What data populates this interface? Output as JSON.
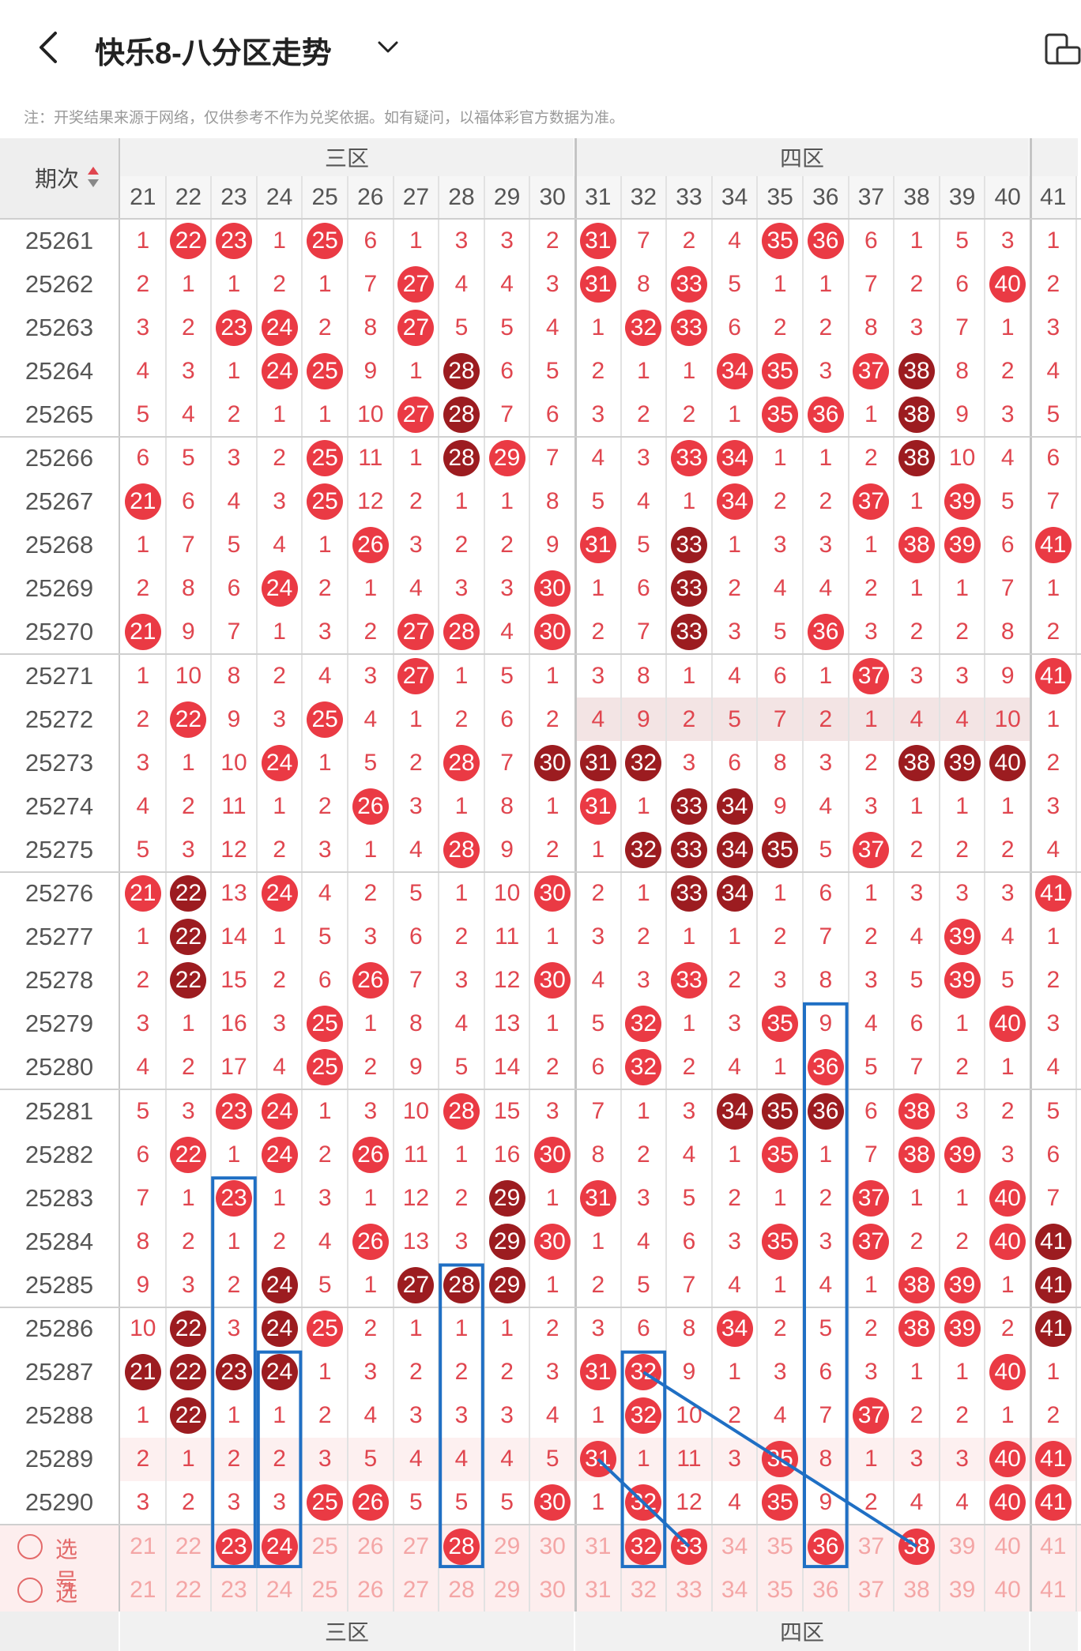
{
  "header": {
    "title": "快乐8-八分区走势",
    "back_icon": "chevron-left-icon",
    "dropdown_icon": "chevron-down-icon",
    "action_icon": "phone-tablet-icon"
  },
  "notice": "注：开奖结果来源于网络，仅供参考不作为兑奖依据。如有疑问，以福体彩官方数据为准。",
  "table": {
    "period_header": "期次",
    "sort_icon": "sort-arrows-icon",
    "zones": [
      {
        "label": "三区",
        "from": 21,
        "to": 30
      },
      {
        "label": "四区",
        "from": 31,
        "to": 40
      }
    ],
    "columns": [
      21,
      22,
      23,
      24,
      25,
      26,
      27,
      28,
      29,
      30,
      31,
      32,
      33,
      34,
      35,
      36,
      37,
      38,
      39,
      40,
      41
    ],
    "rows": [
      {
        "period": "25261",
        "v": [
          1,
          22,
          23,
          1,
          25,
          6,
          1,
          3,
          3,
          2,
          31,
          7,
          2,
          4,
          35,
          36,
          6,
          1,
          5,
          3,
          1
        ],
        "h": [
          22,
          23,
          25,
          31,
          35,
          36
        ]
      },
      {
        "period": "25262",
        "v": [
          2,
          1,
          1,
          2,
          1,
          7,
          27,
          4,
          4,
          3,
          31,
          8,
          33,
          5,
          1,
          1,
          7,
          2,
          6,
          40,
          2
        ],
        "h": [
          27,
          31,
          33,
          40
        ]
      },
      {
        "period": "25263",
        "v": [
          3,
          2,
          23,
          24,
          2,
          8,
          27,
          5,
          5,
          4,
          1,
          32,
          33,
          6,
          2,
          2,
          8,
          3,
          7,
          1,
          3
        ],
        "h": [
          23,
          24,
          27,
          32,
          33
        ]
      },
      {
        "period": "25264",
        "v": [
          4,
          3,
          1,
          24,
          25,
          9,
          1,
          28,
          6,
          5,
          2,
          1,
          1,
          34,
          35,
          3,
          37,
          38,
          8,
          2,
          4
        ],
        "h": [
          24,
          25,
          28,
          34,
          35,
          37,
          38
        ],
        "d": [
          28,
          38
        ]
      },
      {
        "period": "25265",
        "v": [
          5,
          4,
          2,
          1,
          1,
          10,
          27,
          28,
          7,
          6,
          3,
          2,
          2,
          1,
          35,
          36,
          1,
          38,
          9,
          3,
          5
        ],
        "h": [
          27,
          28,
          35,
          36,
          38
        ],
        "d": [
          28,
          38
        ]
      },
      {
        "period": "25266",
        "v": [
          6,
          5,
          3,
          2,
          25,
          11,
          1,
          28,
          29,
          7,
          4,
          3,
          33,
          34,
          1,
          1,
          2,
          38,
          10,
          4,
          6
        ],
        "h": [
          25,
          28,
          29,
          33,
          34,
          38
        ],
        "d": [
          28,
          38
        ]
      },
      {
        "period": "25267",
        "v": [
          21,
          6,
          4,
          3,
          25,
          12,
          2,
          1,
          1,
          8,
          5,
          4,
          1,
          34,
          2,
          2,
          37,
          1,
          39,
          5,
          7
        ],
        "h": [
          21,
          25,
          34,
          37,
          39
        ]
      },
      {
        "period": "25268",
        "v": [
          1,
          7,
          5,
          4,
          1,
          26,
          3,
          2,
          2,
          9,
          31,
          5,
          33,
          1,
          3,
          3,
          1,
          38,
          39,
          6,
          41
        ],
        "h": [
          26,
          31,
          33,
          38,
          39,
          41
        ],
        "d": [
          33
        ]
      },
      {
        "period": "25269",
        "v": [
          2,
          8,
          6,
          24,
          2,
          1,
          4,
          3,
          3,
          30,
          1,
          6,
          33,
          2,
          4,
          4,
          2,
          1,
          1,
          7,
          1
        ],
        "h": [
          24,
          30,
          33
        ],
        "d": [
          33
        ]
      },
      {
        "period": "25270",
        "v": [
          21,
          9,
          7,
          1,
          3,
          2,
          27,
          28,
          4,
          30,
          2,
          7,
          33,
          3,
          5,
          36,
          3,
          2,
          2,
          8,
          2
        ],
        "h": [
          21,
          27,
          28,
          30,
          33,
          36
        ],
        "d": [
          33
        ]
      },
      {
        "period": "25271",
        "v": [
          1,
          10,
          8,
          2,
          4,
          3,
          27,
          1,
          5,
          1,
          3,
          8,
          1,
          4,
          6,
          1,
          37,
          3,
          3,
          9,
          41
        ],
        "h": [
          27,
          37,
          41
        ]
      },
      {
        "period": "25272",
        "v": [
          2,
          22,
          9,
          3,
          25,
          4,
          1,
          2,
          6,
          2,
          4,
          9,
          2,
          5,
          7,
          2,
          1,
          4,
          4,
          10,
          1
        ],
        "h": [
          22,
          25
        ],
        "shade": true
      },
      {
        "period": "25273",
        "v": [
          3,
          1,
          10,
          24,
          1,
          5,
          2,
          28,
          7,
          30,
          31,
          32,
          3,
          6,
          8,
          3,
          2,
          38,
          39,
          40,
          2
        ],
        "h": [
          24,
          28,
          30,
          31,
          32,
          38,
          39,
          40
        ],
        "d": [
          30,
          31,
          32,
          38,
          39,
          40
        ]
      },
      {
        "period": "25274",
        "v": [
          4,
          2,
          11,
          1,
          2,
          26,
          3,
          1,
          8,
          1,
          31,
          1,
          33,
          34,
          9,
          4,
          3,
          1,
          1,
          1,
          3
        ],
        "h": [
          26,
          31,
          33,
          34
        ],
        "d": [
          33,
          34
        ]
      },
      {
        "period": "25275",
        "v": [
          5,
          3,
          12,
          2,
          3,
          1,
          4,
          28,
          9,
          2,
          1,
          32,
          33,
          34,
          35,
          5,
          37,
          2,
          2,
          2,
          4
        ],
        "h": [
          28,
          32,
          33,
          34,
          35,
          37
        ],
        "d": [
          32,
          33,
          34,
          35
        ]
      },
      {
        "period": "25276",
        "v": [
          21,
          22,
          13,
          24,
          4,
          2,
          5,
          1,
          10,
          30,
          2,
          1,
          33,
          34,
          1,
          6,
          1,
          3,
          3,
          3,
          41
        ],
        "h": [
          21,
          22,
          24,
          30,
          33,
          34,
          41
        ],
        "d": [
          22,
          33,
          34
        ]
      },
      {
        "period": "25277",
        "v": [
          1,
          22,
          14,
          1,
          5,
          3,
          6,
          2,
          11,
          1,
          3,
          2,
          1,
          1,
          2,
          7,
          2,
          4,
          39,
          4,
          1
        ],
        "h": [
          22,
          39
        ],
        "d": [
          22
        ]
      },
      {
        "period": "25278",
        "v": [
          2,
          22,
          15,
          2,
          6,
          26,
          7,
          3,
          12,
          30,
          4,
          3,
          33,
          2,
          3,
          8,
          3,
          5,
          39,
          5,
          2
        ],
        "h": [
          22,
          26,
          30,
          33,
          39
        ],
        "d": [
          22
        ]
      },
      {
        "period": "25279",
        "v": [
          3,
          1,
          16,
          3,
          25,
          1,
          8,
          4,
          13,
          1,
          5,
          32,
          1,
          3,
          35,
          9,
          4,
          6,
          1,
          40,
          3
        ],
        "h": [
          25,
          32,
          35,
          40
        ]
      },
      {
        "period": "25280",
        "v": [
          4,
          2,
          17,
          4,
          25,
          2,
          9,
          5,
          14,
          2,
          6,
          32,
          2,
          4,
          1,
          36,
          5,
          7,
          2,
          1,
          4
        ],
        "h": [
          25,
          32,
          36
        ]
      },
      {
        "period": "25281",
        "v": [
          5,
          3,
          23,
          24,
          1,
          3,
          10,
          28,
          15,
          3,
          7,
          1,
          3,
          34,
          35,
          36,
          6,
          38,
          3,
          2,
          5
        ],
        "h": [
          23,
          24,
          28,
          34,
          35,
          36,
          38
        ],
        "d": [
          34,
          35,
          36
        ]
      },
      {
        "period": "25282",
        "v": [
          6,
          22,
          1,
          24,
          2,
          26,
          11,
          1,
          16,
          30,
          8,
          2,
          4,
          1,
          35,
          1,
          7,
          38,
          39,
          3,
          6
        ],
        "h": [
          22,
          24,
          26,
          30,
          35,
          38,
          39
        ]
      },
      {
        "period": "25283",
        "v": [
          7,
          1,
          23,
          1,
          3,
          1,
          12,
          2,
          29,
          1,
          31,
          3,
          5,
          2,
          1,
          2,
          37,
          1,
          1,
          40,
          7
        ],
        "h": [
          23,
          29,
          31,
          37,
          40
        ],
        "d": [
          29
        ]
      },
      {
        "period": "25284",
        "v": [
          8,
          2,
          1,
          2,
          4,
          26,
          13,
          3,
          29,
          30,
          1,
          4,
          6,
          3,
          35,
          3,
          37,
          2,
          2,
          40,
          41
        ],
        "h": [
          26,
          29,
          30,
          35,
          37,
          40,
          41
        ],
        "d": [
          29,
          41
        ]
      },
      {
        "period": "25285",
        "v": [
          9,
          3,
          2,
          24,
          5,
          1,
          27,
          28,
          29,
          1,
          2,
          5,
          7,
          4,
          1,
          4,
          1,
          38,
          39,
          1,
          41
        ],
        "h": [
          24,
          27,
          28,
          29,
          38,
          39,
          41
        ],
        "d": [
          24,
          27,
          28,
          29,
          41
        ]
      },
      {
        "period": "25286",
        "v": [
          10,
          22,
          3,
          24,
          25,
          2,
          1,
          1,
          1,
          2,
          3,
          6,
          8,
          34,
          2,
          5,
          2,
          38,
          39,
          2,
          41
        ],
        "h": [
          22,
          24,
          25,
          34,
          38,
          39,
          41
        ],
        "d": [
          22,
          24,
          41
        ]
      },
      {
        "period": "25287",
        "v": [
          21,
          22,
          23,
          24,
          1,
          3,
          2,
          2,
          2,
          3,
          31,
          32,
          9,
          1,
          3,
          6,
          3,
          1,
          1,
          40,
          1
        ],
        "h": [
          21,
          22,
          23,
          24,
          31,
          32,
          40
        ],
        "d": [
          21,
          22,
          23,
          24
        ]
      },
      {
        "period": "25288",
        "v": [
          1,
          22,
          1,
          1,
          2,
          4,
          3,
          3,
          3,
          4,
          1,
          32,
          10,
          2,
          4,
          7,
          37,
          2,
          2,
          1,
          2
        ],
        "h": [
          22,
          32,
          37
        ],
        "d": [
          22
        ]
      },
      {
        "period": "25289",
        "v": [
          2,
          1,
          2,
          2,
          3,
          5,
          4,
          4,
          4,
          5,
          31,
          1,
          11,
          3,
          35,
          8,
          1,
          3,
          3,
          40,
          41
        ],
        "h": [
          31,
          35,
          40,
          41
        ],
        "shade": true
      },
      {
        "period": "25290",
        "v": [
          3,
          2,
          3,
          3,
          25,
          26,
          5,
          5,
          5,
          30,
          1,
          32,
          12,
          4,
          35,
          9,
          2,
          4,
          4,
          40,
          41
        ],
        "h": [
          25,
          26,
          30,
          32,
          35,
          40,
          41
        ]
      }
    ],
    "select_rows": [
      {
        "label": "选号",
        "h": [
          23,
          24,
          28,
          32,
          33,
          36,
          38
        ]
      },
      {
        "label": "选号",
        "h": []
      }
    ]
  }
}
